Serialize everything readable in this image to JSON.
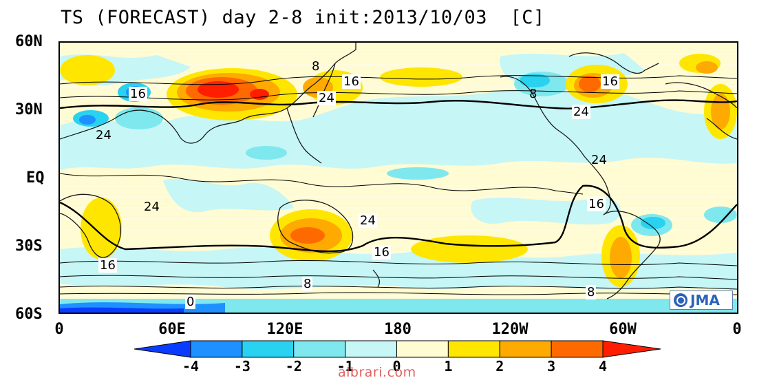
{
  "title": "TS (FORECAST) day 2-8 init:2013/10/03  [C]",
  "lat_labels": [
    "60N",
    "30N",
    "EQ",
    "30S",
    "60S"
  ],
  "lon_labels": [
    "0",
    "60E",
    "120E",
    "180",
    "120W",
    "60W",
    "0"
  ],
  "contour_labels": [
    "16",
    "24",
    "8",
    "24",
    "16",
    "8",
    "16",
    "24",
    "24",
    "24",
    "16",
    "24",
    "16",
    "16",
    "8",
    "8",
    "0"
  ],
  "colorbar": {
    "labels": [
      "-4",
      "-3",
      "-2",
      "-1",
      "0",
      "1",
      "2",
      "3",
      "4"
    ],
    "colors": [
      "#0a3cff",
      "#1e90ff",
      "#28d2f0",
      "#7ee8ee",
      "#c6f6f6",
      "#fffbd2",
      "#ffe600",
      "#ffaa00",
      "#ff6a00",
      "#ff1e00"
    ]
  },
  "logo_text": "JMA",
  "watermark": "albrari.com"
}
